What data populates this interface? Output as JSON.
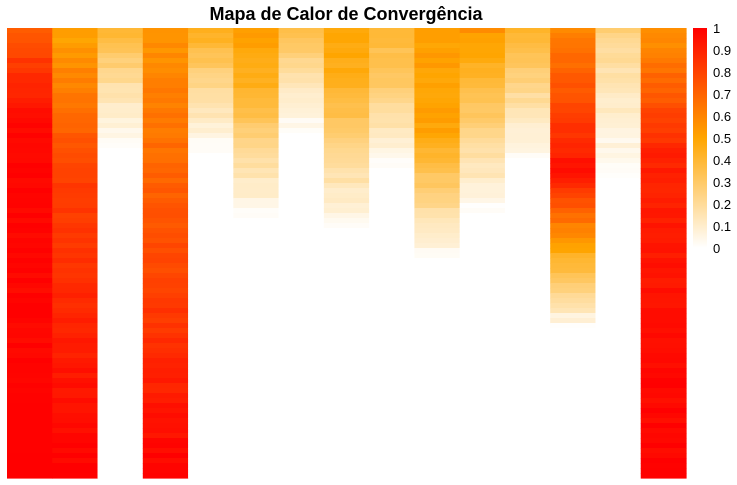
{
  "chart_data": {
    "type": "heatmap",
    "title": "Mapa de Calor de Convergência",
    "xlabel": "",
    "ylabel": "",
    "n_columns": 15,
    "n_rows": 90,
    "value_range": [
      0,
      1
    ],
    "color_scale": [
      "#ffffff",
      "#ffa500",
      "#ff0000"
    ],
    "colorbar_ticks": [
      "1",
      "0.9",
      "0.8",
      "0.7",
      "0.6",
      "0.5",
      "0.4",
      "0.3",
      "0.2",
      "0.1",
      "0"
    ],
    "legend_position": "right",
    "grid": false,
    "columns": [
      {
        "start": 0.75,
        "mid": 0.98,
        "end": 1.0,
        "peak_row": 20,
        "zero_row": 90
      },
      {
        "start": 0.5,
        "mid": 0.8,
        "end": 1.0,
        "peak_row": 28,
        "zero_row": 90
      },
      {
        "start": 0.42,
        "mid": 0.15,
        "end": 0.0,
        "peak_row": 12,
        "zero_row": 24
      },
      {
        "start": 0.55,
        "mid": 0.7,
        "end": 1.0,
        "peak_row": 30,
        "zero_row": 90
      },
      {
        "start": 0.45,
        "mid": 0.2,
        "end": 0.0,
        "peak_row": 12,
        "zero_row": 25
      },
      {
        "start": 0.52,
        "mid": 0.45,
        "end": 0.0,
        "peak_row": 10,
        "zero_row": 38
      },
      {
        "start": 0.35,
        "mid": 0.15,
        "end": 0.0,
        "peak_row": 10,
        "zero_row": 21
      },
      {
        "start": 0.5,
        "mid": 0.45,
        "end": 0.0,
        "peak_row": 10,
        "zero_row": 40
      },
      {
        "start": 0.4,
        "mid": 0.3,
        "end": 0.0,
        "peak_row": 10,
        "zero_row": 28
      },
      {
        "start": 0.52,
        "mid": 0.5,
        "end": 0.0,
        "peak_row": 20,
        "zero_row": 46
      },
      {
        "start": 0.55,
        "mid": 0.4,
        "end": 0.0,
        "peak_row": 10,
        "zero_row": 37
      },
      {
        "start": 0.4,
        "mid": 0.25,
        "end": 0.0,
        "peak_row": 10,
        "zero_row": 26
      },
      {
        "start": 0.6,
        "mid": 0.95,
        "end": 0.0,
        "peak_row": 28,
        "zero_row": 60
      },
      {
        "start": 0.25,
        "mid": 0.15,
        "end": 0.0,
        "peak_row": 10,
        "zero_row": 30
      },
      {
        "start": 0.55,
        "mid": 0.9,
        "end": 1.0,
        "peak_row": 25,
        "zero_row": 90
      }
    ]
  }
}
